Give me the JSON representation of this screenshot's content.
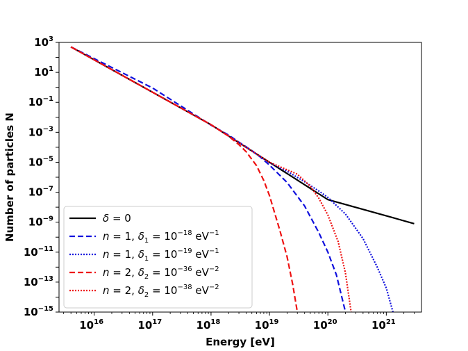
{
  "chart_data": {
    "type": "line",
    "title": "",
    "xlabel": "Energy [eV]",
    "ylabel": "Number of particles N",
    "xscale": "log",
    "yscale": "log",
    "xlim": [
      2500000000000000.0,
      4e+21
    ],
    "ylim": [
      1e-15,
      1000.0
    ],
    "x_ticks": [
      {
        "base": "10",
        "exp": "16"
      },
      {
        "base": "10",
        "exp": "17"
      },
      {
        "base": "10",
        "exp": "18"
      },
      {
        "base": "10",
        "exp": "19"
      },
      {
        "base": "10",
        "exp": "20"
      },
      {
        "base": "10",
        "exp": "21"
      }
    ],
    "y_ticks": [
      {
        "base": "10",
        "exp": "3"
      },
      {
        "base": "10",
        "exp": "1"
      },
      {
        "base": "10",
        "exp": "−1"
      },
      {
        "base": "10",
        "exp": "−3"
      },
      {
        "base": "10",
        "exp": "−5"
      },
      {
        "base": "10",
        "exp": "−7"
      },
      {
        "base": "10",
        "exp": "−9"
      },
      {
        "base": "10",
        "exp": "−11"
      },
      {
        "base": "10",
        "exp": "−13"
      },
      {
        "base": "10",
        "exp": "−15"
      }
    ],
    "legend_position": "lower-left",
    "series": [
      {
        "name": "δ = 0",
        "color": "#000000",
        "style": "solid",
        "legend": {
          "pre": "δ",
          "mid": " = 0",
          "sub": "",
          "value": "",
          "exp": "",
          "unit": ""
        },
        "points": [
          [
            4000000000000000.0,
            500
          ],
          [
            1e+18,
            0.0032
          ],
          [
            1e+19,
            1e-05
          ],
          [
            1e+20,
            3.2e-08
          ],
          [
            3e+21,
            8e-10
          ]
        ]
      },
      {
        "name": "n = 1, δ1 = 10^-18 eV^-1",
        "color": "#1010dd",
        "style": "dashed",
        "legend": {
          "pre": "n",
          "mid": " = 1,    ",
          "var": "δ",
          "sub": "1",
          "value": " = 10",
          "exp": "−18",
          "unit": " eV",
          "unitexp": "−1"
        },
        "points": [
          [
            4000000000000000.0,
            500
          ],
          [
            1e+17,
            0.9
          ],
          [
            1e+18,
            0.003
          ],
          [
            2e+18,
            0.00065
          ],
          [
            3e+18,
            0.00022
          ],
          [
            5e+18,
            6e-05
          ],
          [
            7e+18,
            2.2e-05
          ],
          [
            1e+19,
            6.5e-06
          ],
          [
            2e+19,
            4.5e-07
          ],
          [
            4e+19,
            1.2e-08
          ],
          [
            7e+19,
            2e-10
          ],
          [
            1e+20,
            1e-11
          ],
          [
            1.4e+20,
            3e-13
          ],
          [
            2e+20,
            1e-15
          ]
        ]
      },
      {
        "name": "n = 1, δ1 = 10^-19 eV^-1",
        "color": "#1010dd",
        "style": "dotted",
        "legend": {
          "pre": "n",
          "mid": " = 1,    ",
          "var": "δ",
          "sub": "1",
          "value": " = 10",
          "exp": "−19",
          "unit": " eV",
          "unitexp": "−1"
        },
        "points": [
          [
            4000000000000000.0,
            500
          ],
          [
            1e+18,
            0.0032
          ],
          [
            1e+19,
            9.5e-06
          ],
          [
            2e+19,
            2.5e-06
          ],
          [
            4e+19,
            5e-07
          ],
          [
            7e+19,
            1.2e-07
          ],
          [
            1e+20,
            4.5e-08
          ],
          [
            2e+20,
            3.5e-09
          ],
          [
            4e+20,
            8e-11
          ],
          [
            7e+20,
            1e-12
          ],
          [
            1e+21,
            4e-14
          ],
          [
            1.3e+21,
            1e-15
          ]
        ]
      },
      {
        "name": "n = 2, δ2 = 10^-36 eV^-2",
        "color": "#ee1111",
        "style": "dashed",
        "legend": {
          "pre": "n",
          "mid": " = 2,    ",
          "var": "δ",
          "sub": "2",
          "value": " = 10",
          "exp": "−36",
          "unit": " eV",
          "unitexp": "−2"
        },
        "points": [
          [
            4000000000000000.0,
            500
          ],
          [
            1e+18,
            0.0032
          ],
          [
            2e+18,
            0.00055
          ],
          [
            3e+18,
            0.00015
          ],
          [
            4e+18,
            5e-05
          ],
          [
            6e+18,
            6e-06
          ],
          [
            8e+18,
            6e-07
          ],
          [
            1e+19,
            6e-08
          ],
          [
            1.5e+19,
            3e-10
          ],
          [
            2e+19,
            5e-12
          ],
          [
            2.5e+19,
            7e-14
          ],
          [
            3e+19,
            1e-15
          ]
        ]
      },
      {
        "name": "n = 2, δ2 = 10^-38 eV^-2",
        "color": "#ee1111",
        "style": "dotted",
        "legend": {
          "pre": "n",
          "mid": " = 2,    ",
          "var": "δ",
          "sub": "2",
          "value": " = 10",
          "exp": "−38",
          "unit": " eV",
          "unitexp": "−2"
        },
        "points": [
          [
            4000000000000000.0,
            500
          ],
          [
            1e+18,
            0.0032
          ],
          [
            1e+19,
            1e-05
          ],
          [
            3e+19,
            1.6e-06
          ],
          [
            5e+19,
            2.5e-07
          ],
          [
            7e+19,
            4e-08
          ],
          [
            1e+20,
            3e-09
          ],
          [
            1.5e+20,
            5e-11
          ],
          [
            2e+20,
            4e-13
          ],
          [
            2.5e+20,
            1e-15
          ]
        ]
      }
    ]
  }
}
